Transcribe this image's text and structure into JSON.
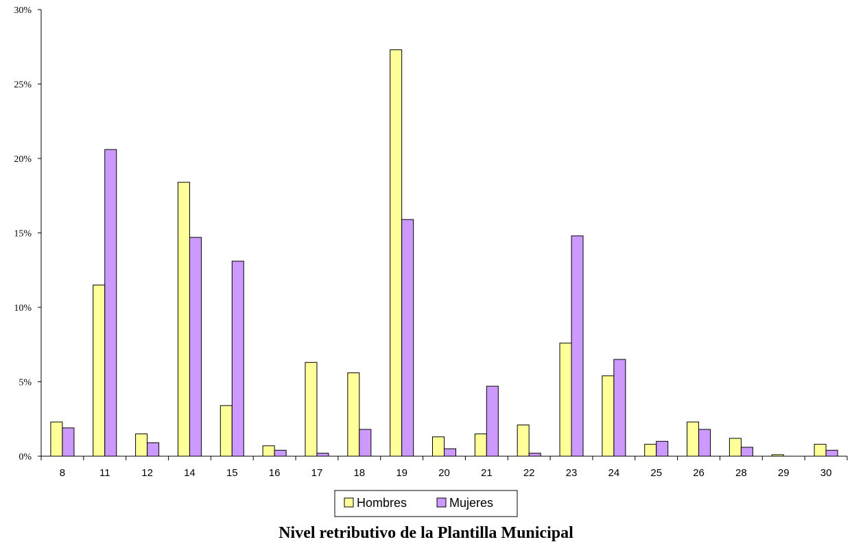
{
  "chart_data": {
    "type": "bar",
    "title": "Nivel retributivo de la Plantilla Municipal",
    "xlabel": "",
    "ylabel": "",
    "categories": [
      "8",
      "11",
      "12",
      "14",
      "15",
      "16",
      "17",
      "18",
      "19",
      "20",
      "21",
      "22",
      "23",
      "24",
      "25",
      "26",
      "28",
      "29",
      "30"
    ],
    "series": [
      {
        "name": "Hombres",
        "color": "#FFFF99",
        "values": [
          2.3,
          11.5,
          1.5,
          18.4,
          3.4,
          0.7,
          6.3,
          5.6,
          27.3,
          1.3,
          1.5,
          2.1,
          7.6,
          5.4,
          0.8,
          2.3,
          1.2,
          0.1,
          0.8
        ]
      },
      {
        "name": "Mujeres",
        "color": "#CC99FF",
        "values": [
          1.9,
          20.6,
          0.9,
          14.7,
          13.1,
          0.4,
          0.2,
          1.8,
          15.9,
          0.5,
          4.7,
          0.2,
          14.8,
          6.5,
          1.0,
          1.8,
          0.6,
          0.0,
          0.4
        ]
      }
    ],
    "ylim": [
      0,
      30
    ],
    "yticks": [
      "0%",
      "5%",
      "10%",
      "15%",
      "20%",
      "25%",
      "30%"
    ],
    "grid": false,
    "legend_position": "bottom-center"
  }
}
